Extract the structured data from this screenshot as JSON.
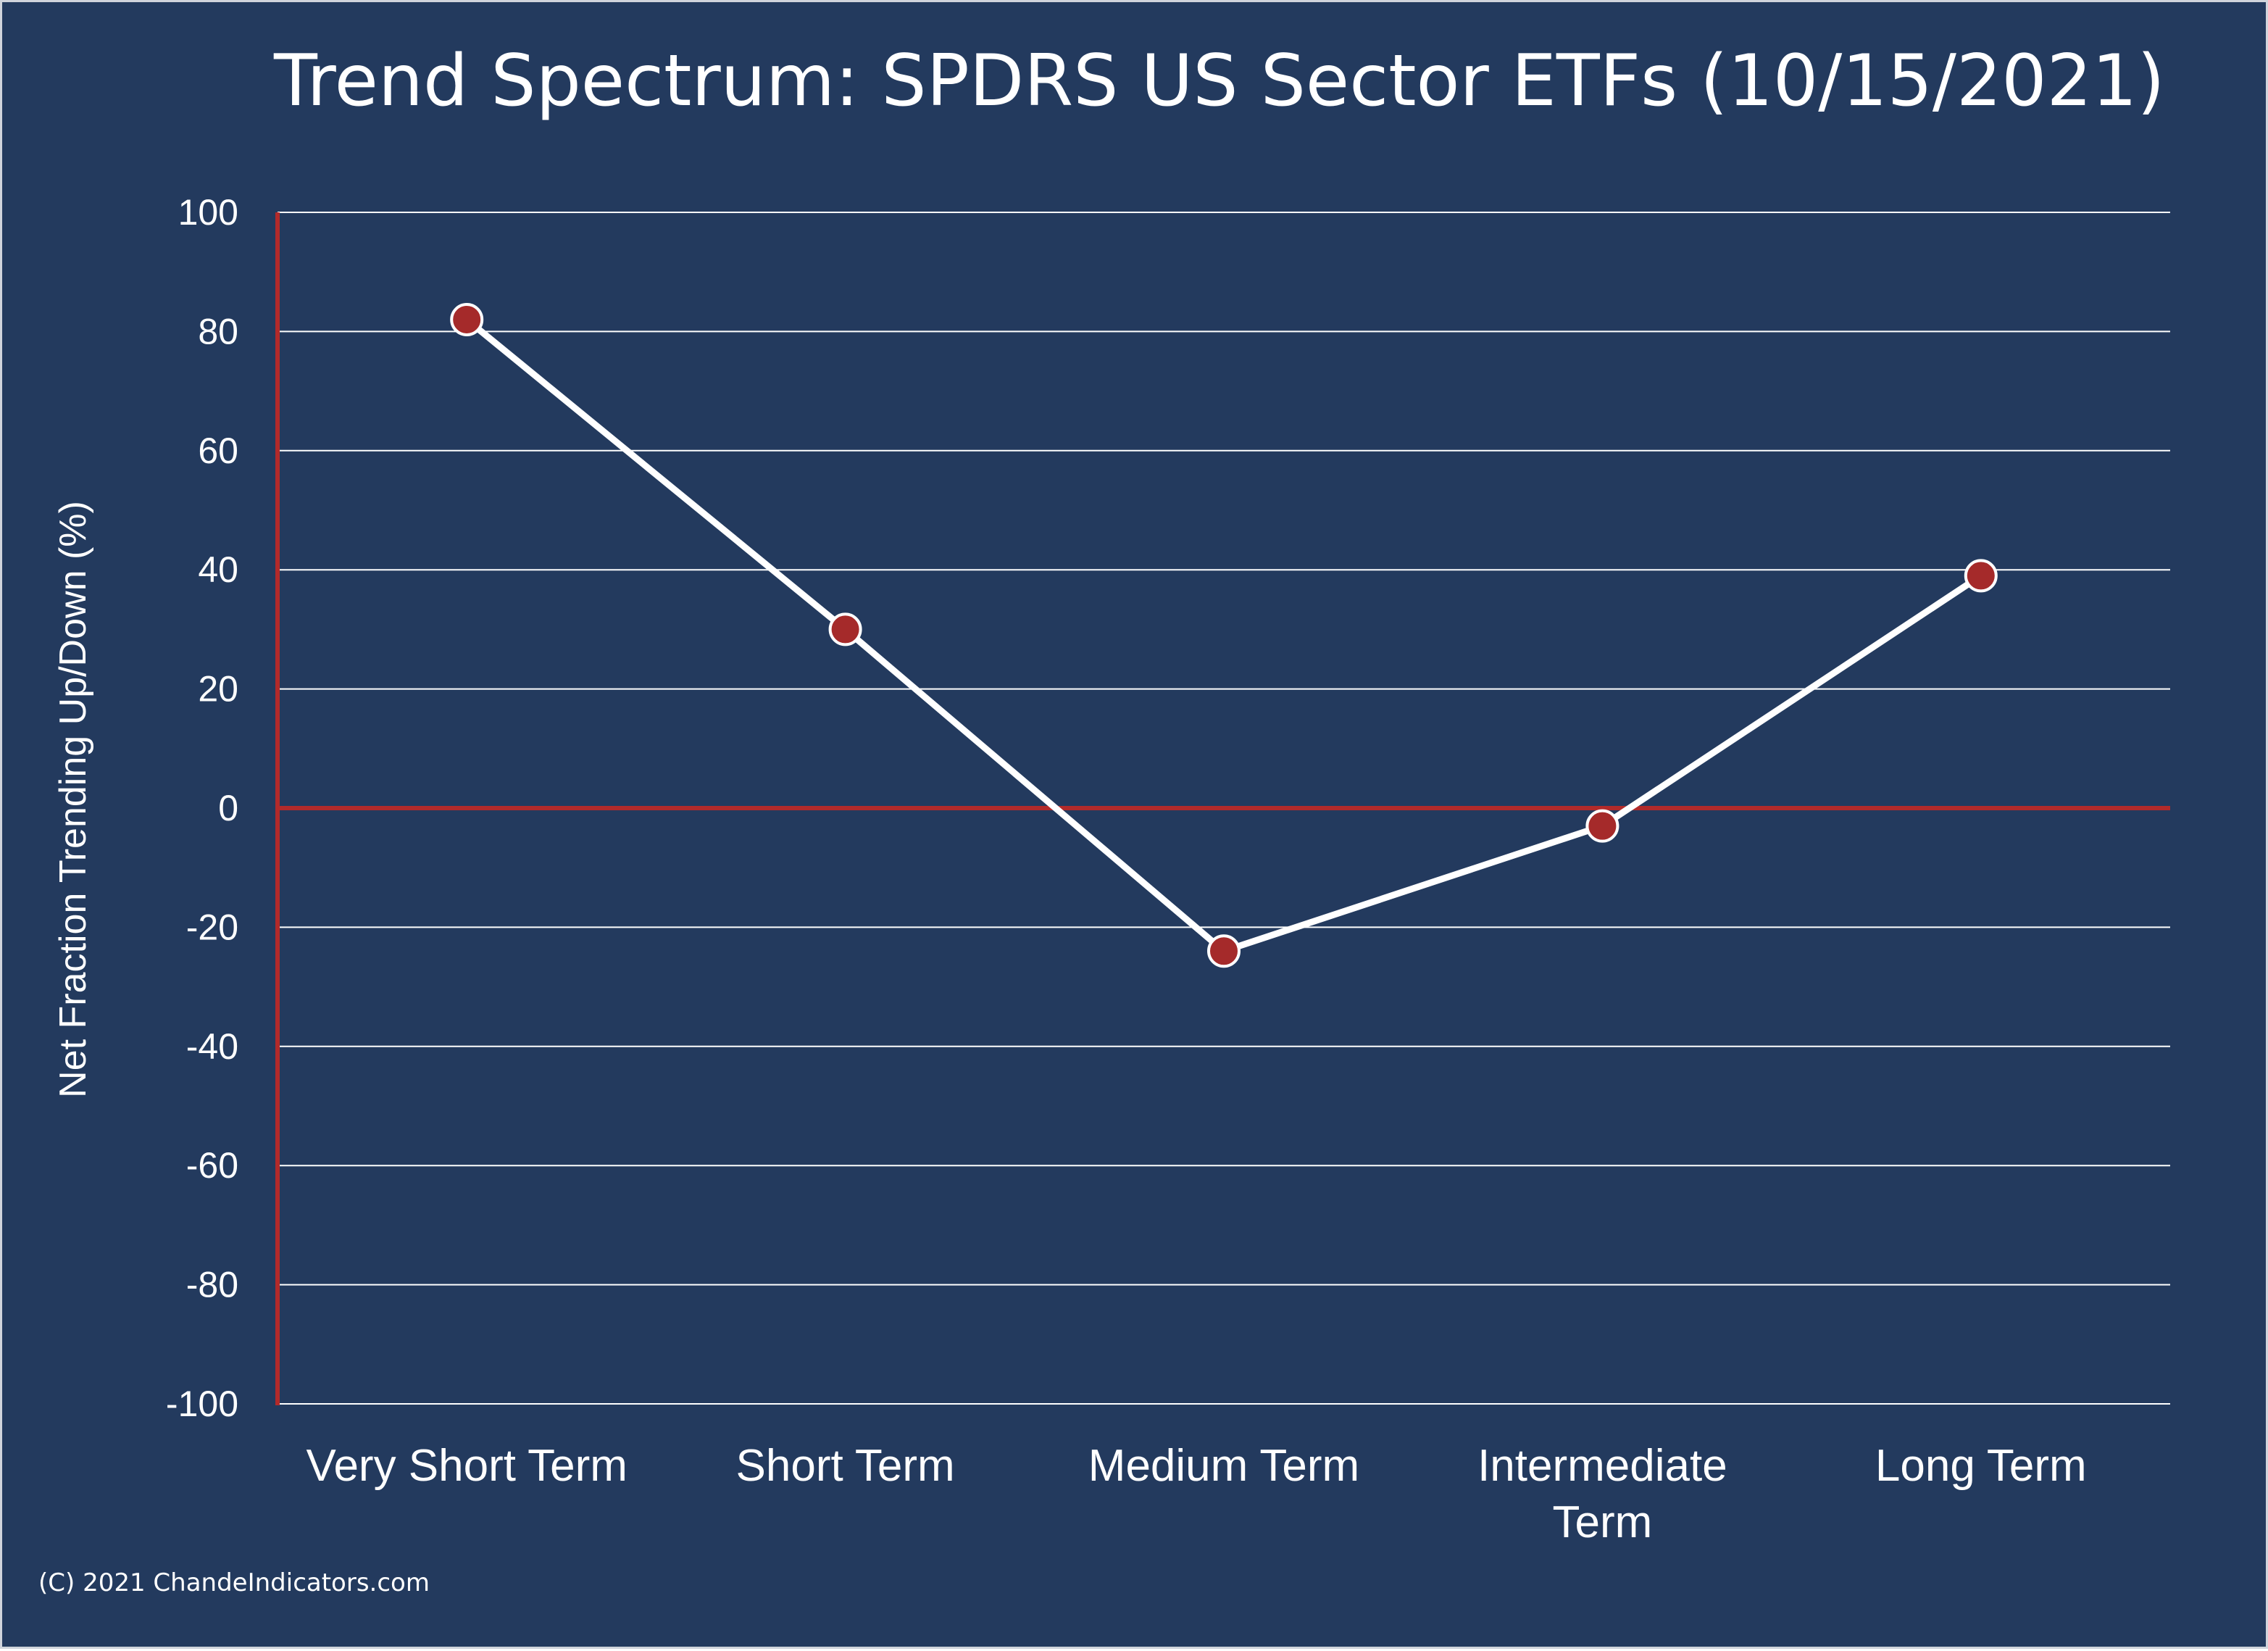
{
  "chart_data": {
    "type": "line",
    "title": "Trend Spectrum: SPDRS US Sector ETFs (10/15/2021)",
    "xlabel": "",
    "ylabel": "Net Fraction Trending Up/Down (%)",
    "categories": [
      [
        "Very Short Term"
      ],
      [
        "Short Term"
      ],
      [
        "Medium Term"
      ],
      [
        "Intermediate",
        "Term"
      ],
      [
        "Long Term"
      ]
    ],
    "values": [
      82,
      30,
      -24,
      -3,
      39
    ],
    "ylim": [
      -100,
      100
    ],
    "yticks": [
      100,
      80,
      60,
      40,
      20,
      0,
      -20,
      -40,
      -60,
      -80,
      -100
    ],
    "grid": true,
    "legend": "none"
  },
  "footer": {
    "copyright": "(C) 2021 ChandeIndicators.com"
  },
  "colors": {
    "background": "#233a5e",
    "line": "#ffffff",
    "marker": "#a52a2a",
    "axis": "#b22a2a",
    "grid": "#ffffff"
  }
}
